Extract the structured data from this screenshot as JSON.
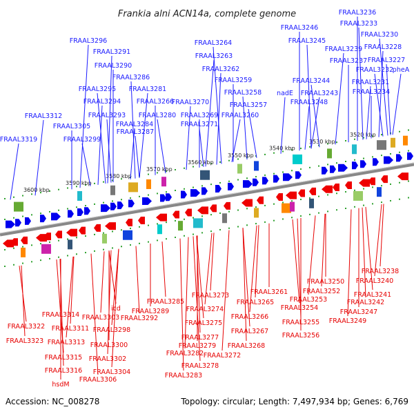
{
  "title": "Frankia alni ACN14a, complete genome",
  "footer": {
    "accession": "Accession: NC_008278",
    "summary": "Topology: circular; Length: 7,497,934 bp; Genes: 6,769"
  },
  "colors": {
    "forward_label": "#1a1aff",
    "reverse_label": "#e60000",
    "forward_gene": "#0000ee",
    "reverse_gene": "#ee0000",
    "axis": "#888888",
    "tick_dot": "#2ea12e"
  },
  "kbp_ticks": [
    "3600 kbp",
    "3590 kbp",
    "3580 kbp",
    "3570 kbp",
    "3560 kbp",
    "3550 kbp",
    "3540 kbp",
    "3530 kbp",
    "3520 kbp"
  ],
  "top_labels": [
    "FRAAL3296",
    "FRAAL3291",
    "FRAAL3290",
    "FRAAL3286",
    "FRAAL3295",
    "FRAAL3281",
    "FRAAL3294",
    "FRAAL3266",
    "FRAAL3293",
    "FRAAL3280",
    "FRAAL3312",
    "FRAAL3284",
    "FRAAL3305",
    "FRAAL3287",
    "FRAAL3299",
    "FRAAL3319",
    "FRAAL3270",
    "FRAAL3269",
    "FRAAL3271",
    "FRAAL3264",
    "FRAAL3263",
    "FRAAL3262",
    "FRAAL3259",
    "FRAAL3258",
    "FRAAL3257",
    "FRAAL3260",
    "nadE",
    "FRAAL3246",
    "FRAAL3245",
    "FRAAL3244",
    "FRAAL3243",
    "FRAAL3248",
    "FRAAL3236",
    "FRAAL3233",
    "FRAAL3230",
    "FRAAL3239",
    "FRAAL3228",
    "FRAAL3237",
    "FRAAL3227",
    "FRAAL3232",
    "pheA",
    "FRAAL3231",
    "FRAAL3234"
  ],
  "bottom_labels": [
    "FRAAL3322",
    "FRAAL3323",
    "FRAAL3314",
    "FRAAL3311",
    "FRAAL3313",
    "FRAAL3315",
    "FRAAL3316",
    "hsdM",
    "FRAAL3303",
    "FRAAL3298",
    "icd",
    "FRAAL3292",
    "FRAAL3300",
    "FRAAL3302",
    "FRAAL3304",
    "FRAAL3306",
    "FRAAL3285",
    "FRAAL3289",
    "FRAAL3273",
    "FRAAL3274",
    "FRAAL3275",
    "FRAAL3277",
    "FRAAL3279",
    "FRAAL3282",
    "FRAAL3272",
    "FRAAL3278",
    "FRAAL3283",
    "FRAAL3261",
    "FRAAL3265",
    "FRAAL3266",
    "FRAAL3267",
    "FRAAL3268",
    "FRAAL3250",
    "FRAAL3252",
    "FRAAL3253",
    "FRAAL3254",
    "FRAAL3255",
    "FRAAL3256",
    "FRAAL3238",
    "FRAAL3240",
    "FRAAL3241",
    "FRAAL3242",
    "FRAAL3247",
    "FRAAL3249"
  ]
}
